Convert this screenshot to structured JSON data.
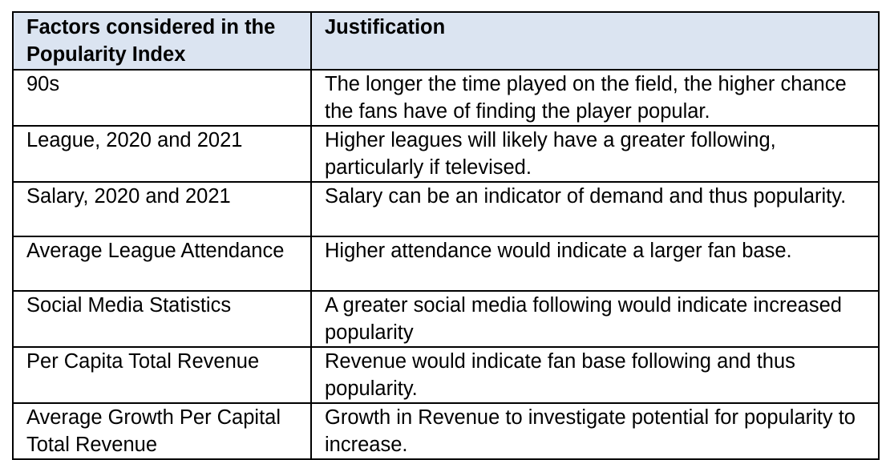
{
  "colors": {
    "header_background": "#dbe4f1",
    "border": "#000000",
    "text": "#000000"
  },
  "table": {
    "headers": [
      "Factors considered in the Popularity Index",
      "Justification"
    ],
    "rows": [
      {
        "factor": "90s",
        "justification": "The longer the time played on the field, the higher chance the fans have of finding the player popular."
      },
      {
        "factor": "League, 2020 and 2021",
        "justification": "Higher leagues will likely have a greater following, particularly if televised."
      },
      {
        "factor": "Salary, 2020 and 2021",
        "justification": "Salary can be an indicator of demand and thus popularity."
      },
      {
        "factor": "Average League Attendance",
        "justification": "Higher attendance would indicate a larger fan base."
      },
      {
        "factor": "Social Media Statistics",
        "justification": "A greater social media following would indicate increased popularity"
      },
      {
        "factor": "Per Capita Total Revenue",
        "justification": "Revenue would indicate fan base following and thus popularity."
      },
      {
        "factor": "Average Growth Per Capital Total Revenue",
        "justification": "Growth in Revenue to investigate potential for popularity to increase."
      }
    ]
  }
}
